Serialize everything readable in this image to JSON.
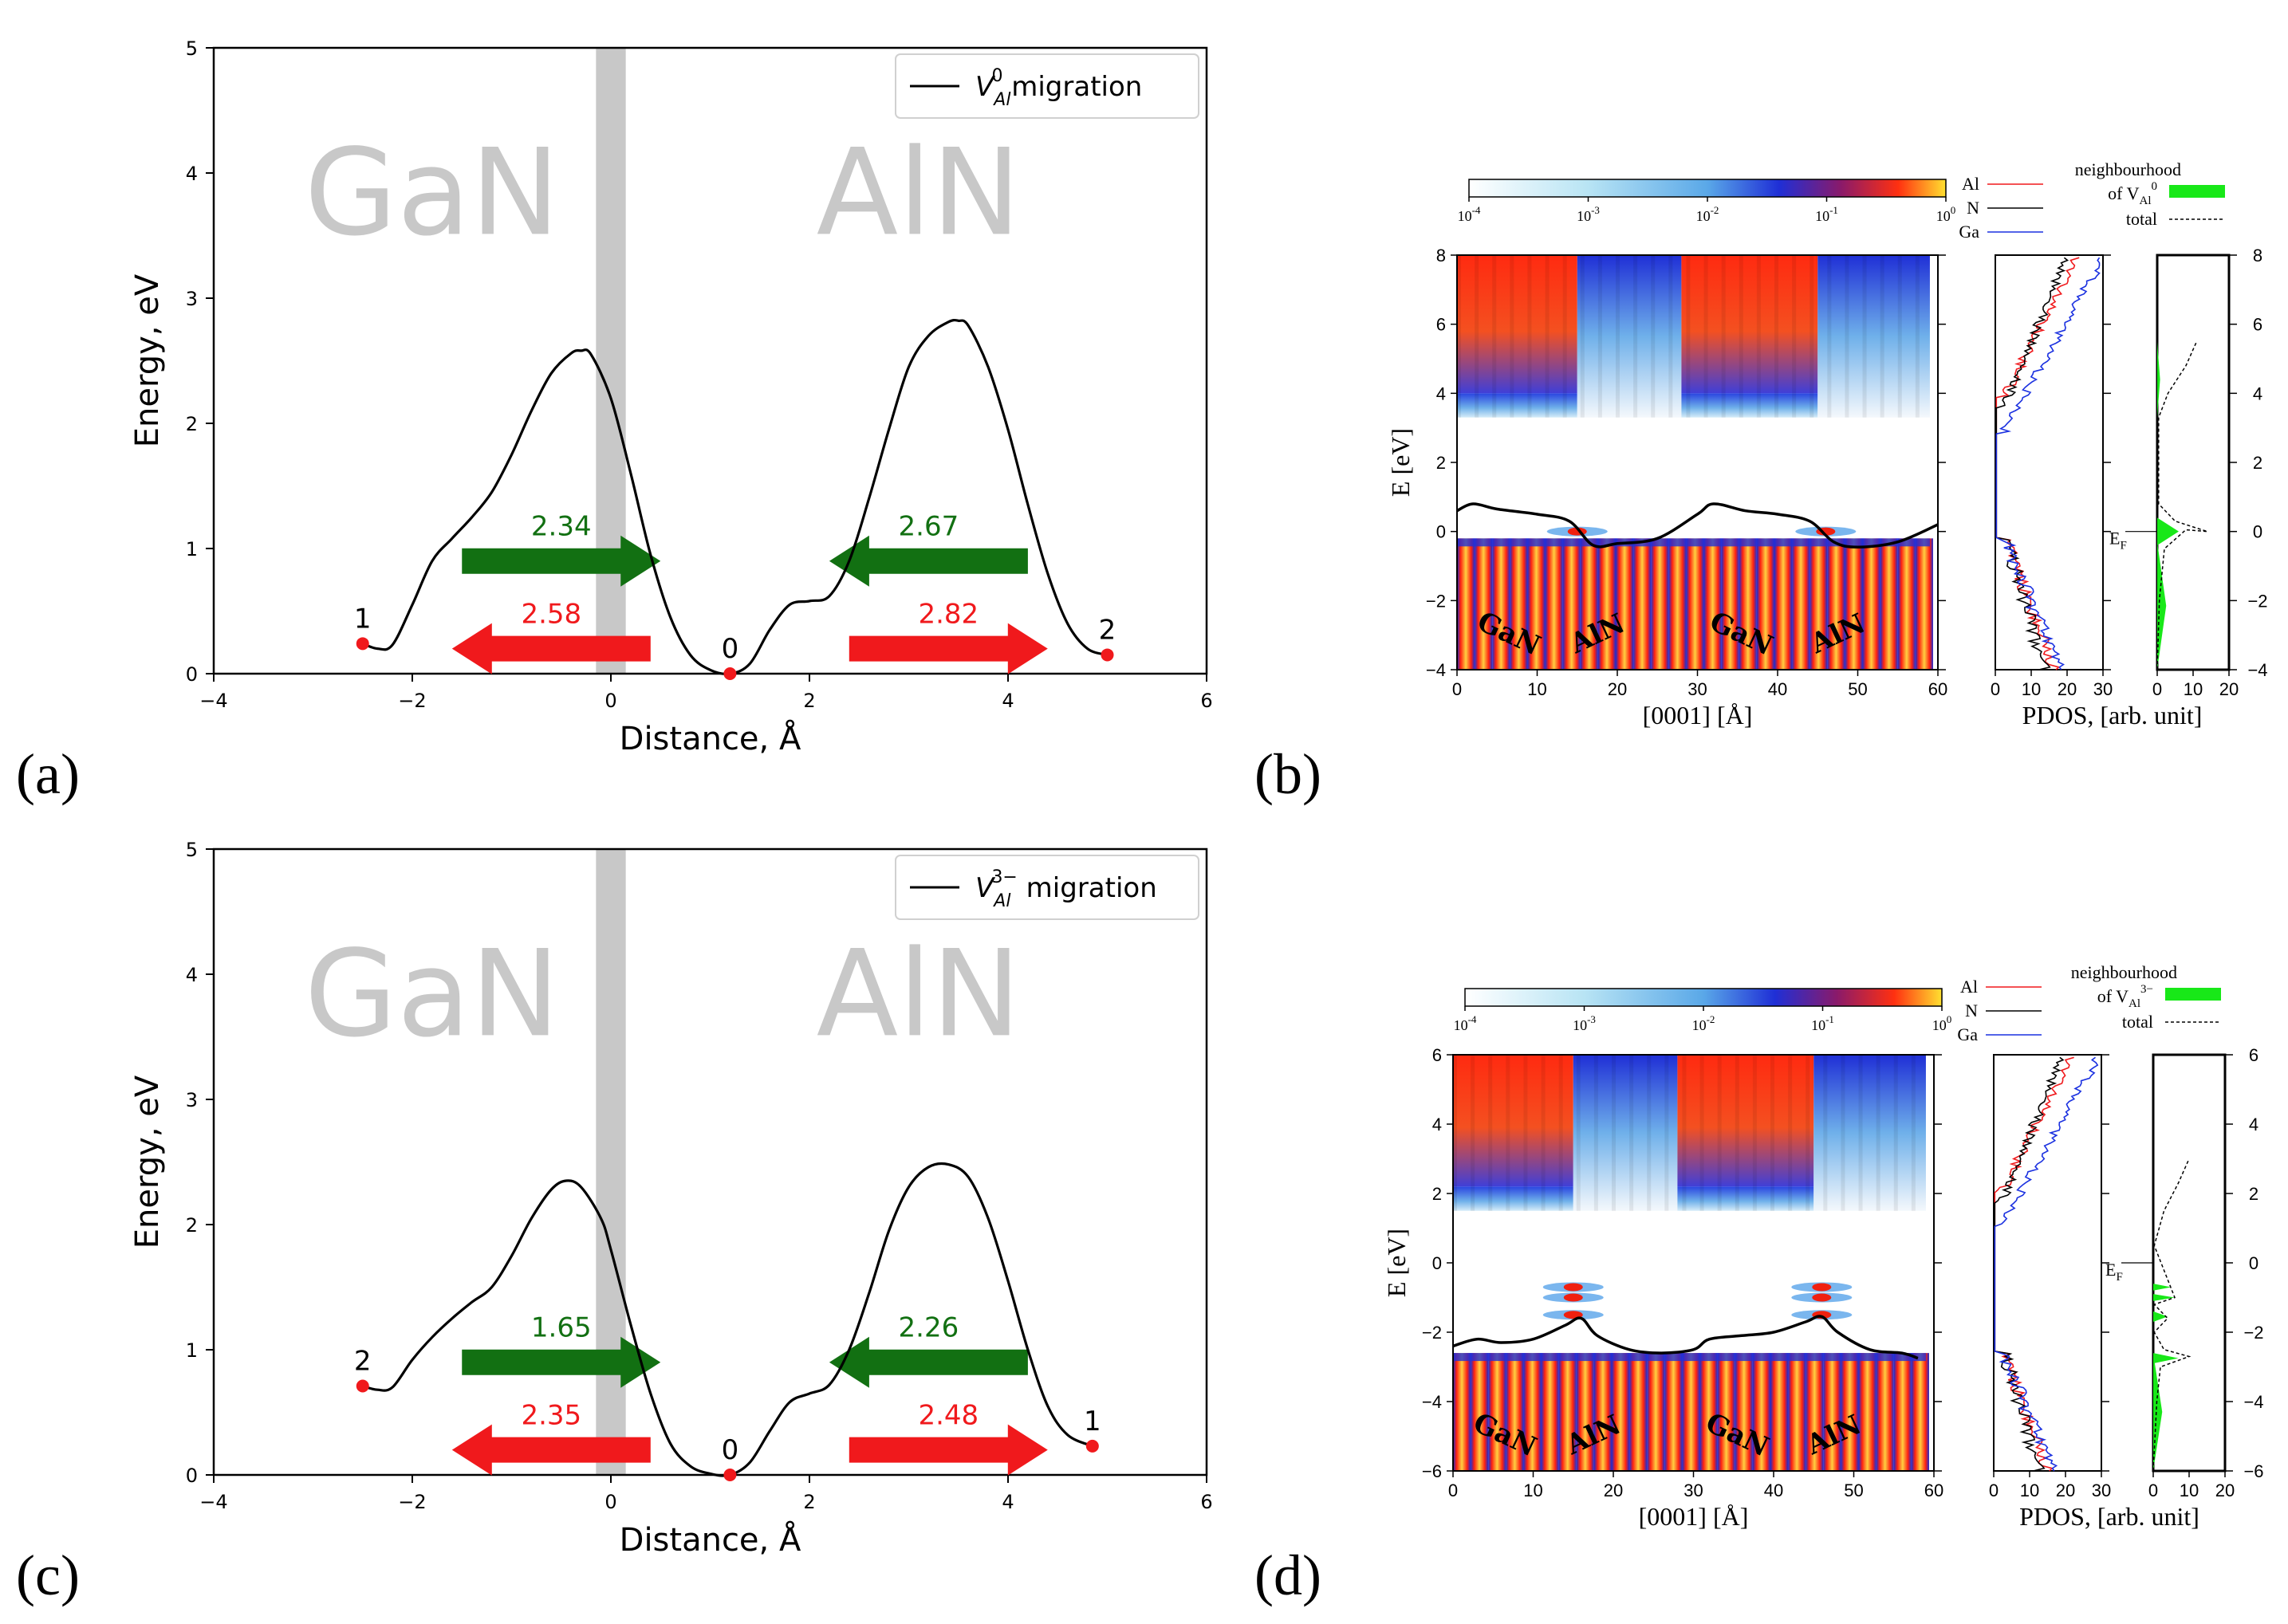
{
  "figure": {
    "panel_labels": [
      "(a)",
      "(b)",
      "(c)",
      "(d)"
    ]
  },
  "chart_data": [
    {
      "panel": "(a)",
      "type": "line",
      "title": "",
      "legend": "V_Al^0 migration",
      "legend_base": "V",
      "legend_sub": "Al",
      "legend_sup": "0",
      "legend_rest": " migration",
      "legend_position": "top-right",
      "xlabel": "Distance, Å",
      "ylabel": "Energy, eV",
      "xlim": [
        -4,
        6
      ],
      "ylim": [
        0,
        5
      ],
      "xticks": [
        -4,
        -2,
        0,
        2,
        4,
        6
      ],
      "yticks": [
        0,
        1,
        2,
        3,
        4,
        5
      ],
      "interface_band_x": [
        -0.15,
        0.15
      ],
      "region_labels": [
        {
          "text": "GaN",
          "x": -1.8,
          "y": 3.8
        },
        {
          "text": "AlN",
          "x": 3.1,
          "y": 3.8
        }
      ],
      "series": [
        {
          "name": "V_Al^0 migration",
          "x": [
            -2.5,
            -2.35,
            -2.2,
            -2.0,
            -1.8,
            -1.6,
            -1.4,
            -1.2,
            -1.0,
            -0.8,
            -0.6,
            -0.4,
            -0.3,
            -0.2,
            0.0,
            0.2,
            0.4,
            0.6,
            0.8,
            1.0,
            1.2,
            1.4,
            1.6,
            1.8,
            2.0,
            2.2,
            2.4,
            2.6,
            2.8,
            3.0,
            3.2,
            3.4,
            3.5,
            3.6,
            3.8,
            4.0,
            4.2,
            4.4,
            4.6,
            4.8,
            5.0
          ],
          "y": [
            0.24,
            0.2,
            0.23,
            0.55,
            0.9,
            1.08,
            1.25,
            1.45,
            1.75,
            2.1,
            2.4,
            2.56,
            2.58,
            2.55,
            2.2,
            1.6,
            0.95,
            0.45,
            0.15,
            0.03,
            0.0,
            0.08,
            0.35,
            0.55,
            0.58,
            0.62,
            0.9,
            1.4,
            1.95,
            2.45,
            2.7,
            2.81,
            2.82,
            2.78,
            2.45,
            1.95,
            1.35,
            0.8,
            0.4,
            0.2,
            0.15
          ]
        }
      ],
      "points": [
        {
          "label": "1",
          "x": -2.5,
          "y": 0.24
        },
        {
          "label": "0",
          "x": 1.2,
          "y": 0.0
        },
        {
          "label": "2",
          "x": 5.0,
          "y": 0.15
        }
      ],
      "arrows": [
        {
          "value": "2.34",
          "color": "green",
          "dir": "right",
          "x0": -1.5,
          "x1": 0.5,
          "y": 0.9
        },
        {
          "value": "2.58",
          "color": "red",
          "dir": "left",
          "x0": 0.4,
          "x1": -1.6,
          "y": 0.2
        },
        {
          "value": "2.67",
          "color": "green",
          "dir": "left",
          "x0": 4.2,
          "x1": 2.2,
          "y": 0.9
        },
        {
          "value": "2.82",
          "color": "red",
          "dir": "right",
          "x0": 2.4,
          "x1": 4.4,
          "y": 0.2
        }
      ]
    },
    {
      "panel": "(b)",
      "type": "heatmap",
      "colorbar_ticks": [
        "10",
        "10",
        "10",
        "10",
        "10"
      ],
      "colorbar_exps": [
        "-4",
        "-3",
        "-2",
        "-1",
        "0"
      ],
      "xlabel": "[0001] [Å]",
      "ylabel": "E [eV]",
      "xlim": [
        0,
        60
      ],
      "ylim": [
        -4,
        8
      ],
      "xticks": [
        0,
        10,
        20,
        30,
        40,
        50,
        60
      ],
      "yticks": [
        -4,
        -2,
        0,
        2,
        4,
        6,
        8
      ],
      "region_labels": [
        "GaN",
        "AlN",
        "GaN",
        "AlN"
      ],
      "vbm_line": {
        "x": [
          0,
          2,
          5,
          10,
          14,
          17,
          20,
          25,
          30,
          32,
          36,
          40,
          44,
          47,
          50,
          55,
          60
        ],
        "y": [
          0.6,
          0.8,
          0.65,
          0.5,
          0.3,
          -0.4,
          -0.35,
          -0.2,
          0.5,
          0.8,
          0.6,
          0.5,
          0.3,
          -0.3,
          -0.45,
          -0.3,
          0.2
        ]
      },
      "pdos_xlabel": "PDOS, [arb. unit]",
      "pdos_xticks": [
        0,
        10,
        20,
        30
      ],
      "pdos2_xticks": [
        0,
        10,
        20
      ],
      "pdos_legend": [
        "Al",
        "N",
        "Ga"
      ],
      "pdos2_legend": [
        "neighbourhood",
        "of V",
        "Al",
        "0",
        "total"
      ],
      "fermi_label": "E",
      "fermi_sub": "F"
    },
    {
      "panel": "(c)",
      "type": "line",
      "title": "",
      "legend": "V_Al^3- migration",
      "legend_base": "V",
      "legend_sub": "Al",
      "legend_sup": "3−",
      "legend_rest": " migration",
      "legend_position": "top-right",
      "xlabel": "Distance, Å",
      "ylabel": "Energy, eV",
      "xlim": [
        -4,
        6
      ],
      "ylim": [
        0,
        5
      ],
      "xticks": [
        -4,
        -2,
        0,
        2,
        4,
        6
      ],
      "yticks": [
        0,
        1,
        2,
        3,
        4,
        5
      ],
      "interface_band_x": [
        -0.15,
        0.15
      ],
      "region_labels": [
        {
          "text": "GaN",
          "x": -1.8,
          "y": 3.8
        },
        {
          "text": "AlN",
          "x": 3.1,
          "y": 3.8
        }
      ],
      "series": [
        {
          "name": "V_Al^3- migration",
          "x": [
            -2.5,
            -2.35,
            -2.2,
            -2.0,
            -1.8,
            -1.6,
            -1.4,
            -1.2,
            -1.0,
            -0.8,
            -0.6,
            -0.45,
            -0.3,
            -0.1,
            0.0,
            0.2,
            0.4,
            0.6,
            0.8,
            1.0,
            1.2,
            1.4,
            1.6,
            1.8,
            2.0,
            2.2,
            2.4,
            2.6,
            2.8,
            3.0,
            3.2,
            3.4,
            3.6,
            3.8,
            4.0,
            4.2,
            4.4,
            4.6,
            4.85
          ],
          "y": [
            0.71,
            0.68,
            0.7,
            0.92,
            1.1,
            1.25,
            1.38,
            1.5,
            1.75,
            2.05,
            2.28,
            2.35,
            2.3,
            2.05,
            1.8,
            1.2,
            0.65,
            0.25,
            0.07,
            0.01,
            0.0,
            0.1,
            0.35,
            0.58,
            0.65,
            0.72,
            1.0,
            1.45,
            1.95,
            2.3,
            2.46,
            2.48,
            2.38,
            2.05,
            1.55,
            1.0,
            0.55,
            0.32,
            0.23
          ]
        }
      ],
      "points": [
        {
          "label": "2",
          "x": -2.5,
          "y": 0.71
        },
        {
          "label": "0",
          "x": 1.2,
          "y": 0.0
        },
        {
          "label": "1",
          "x": 4.85,
          "y": 0.23
        }
      ],
      "arrows": [
        {
          "value": "1.65",
          "color": "green",
          "dir": "right",
          "x0": -1.5,
          "x1": 0.5,
          "y": 0.9
        },
        {
          "value": "2.35",
          "color": "red",
          "dir": "left",
          "x0": 0.4,
          "x1": -1.6,
          "y": 0.2
        },
        {
          "value": "2.26",
          "color": "green",
          "dir": "left",
          "x0": 4.2,
          "x1": 2.2,
          "y": 0.9
        },
        {
          "value": "2.48",
          "color": "red",
          "dir": "right",
          "x0": 2.4,
          "x1": 4.4,
          "y": 0.2
        }
      ]
    },
    {
      "panel": "(d)",
      "type": "heatmap",
      "colorbar_ticks": [
        "10",
        "10",
        "10",
        "10",
        "10"
      ],
      "colorbar_exps": [
        "-4",
        "-3",
        "-2",
        "-1",
        "0"
      ],
      "xlabel": "[0001] [Å]",
      "ylabel": "E [eV]",
      "xlim": [
        0,
        60
      ],
      "ylim": [
        -6,
        6
      ],
      "xticks": [
        0,
        10,
        20,
        30,
        40,
        50,
        60
      ],
      "yticks": [
        -6,
        -4,
        -2,
        0,
        2,
        4,
        6
      ],
      "region_labels": [
        "GaN",
        "AlN",
        "GaN",
        "AlN"
      ],
      "vbm_line": {
        "x": [
          0,
          3,
          6,
          10,
          14,
          16,
          18,
          22,
          26,
          30,
          32,
          36,
          40,
          44,
          46,
          48,
          52,
          56,
          58
        ],
        "y": [
          -2.4,
          -2.2,
          -2.3,
          -2.2,
          -1.8,
          -1.6,
          -2.1,
          -2.5,
          -2.6,
          -2.5,
          -2.2,
          -2.1,
          -2.0,
          -1.7,
          -1.55,
          -2.0,
          -2.5,
          -2.6,
          -2.75
        ]
      },
      "pdos_xlabel": "PDOS, [arb. unit]",
      "pdos_xticks": [
        0,
        10,
        20,
        30
      ],
      "pdos2_xticks": [
        0,
        10,
        20
      ],
      "pdos_legend": [
        "Al",
        "N",
        "Ga"
      ],
      "pdos2_legend": [
        "neighbourhood",
        "of V",
        "Al",
        "3−",
        "total"
      ],
      "fermi_label": "E",
      "fermi_sub": "F"
    }
  ]
}
